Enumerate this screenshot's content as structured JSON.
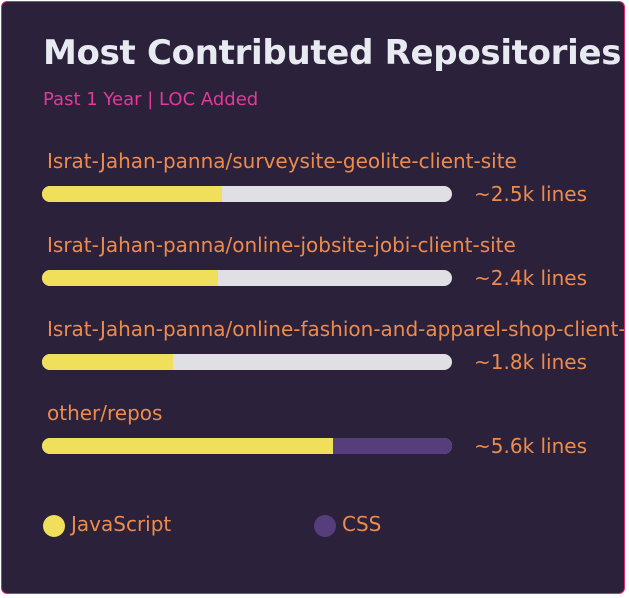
{
  "card": {
    "title": "Most Contributed Repositories",
    "subtitle": "Past 1 Year | LOC Added",
    "colors": {
      "background": "#2b213a",
      "border": "#e4266e",
      "title": "#e8eaf2",
      "subtitle": "#e03a9a",
      "text": "#ee8b4c",
      "track": "#dfdfe4"
    }
  },
  "languages": [
    {
      "name": "JavaScript",
      "color": "#f0df5b"
    },
    {
      "name": "CSS",
      "color": "#563d7c"
    }
  ],
  "repos": [
    {
      "name": "Israt-Jahan-panna/surveysite-geolite-client-site",
      "lines": "~2.5k lines",
      "segments": [
        {
          "language": "JavaScript",
          "fraction": 0.44
        }
      ]
    },
    {
      "name": "Israt-Jahan-panna/online-jobsite-jobi-client-site",
      "lines": "~2.4k lines",
      "segments": [
        {
          "language": "JavaScript",
          "fraction": 0.43
        }
      ]
    },
    {
      "name": "Israt-Jahan-panna/online-fashion-and-apparel-shop-client-site",
      "lines": "~1.8k lines",
      "segments": [
        {
          "language": "JavaScript",
          "fraction": 0.32
        }
      ]
    },
    {
      "name": "other/repos",
      "lines": "~5.6k lines",
      "segments": [
        {
          "language": "JavaScript",
          "fraction": 0.71
        },
        {
          "language": "CSS",
          "fraction": 0.29
        }
      ]
    }
  ]
}
